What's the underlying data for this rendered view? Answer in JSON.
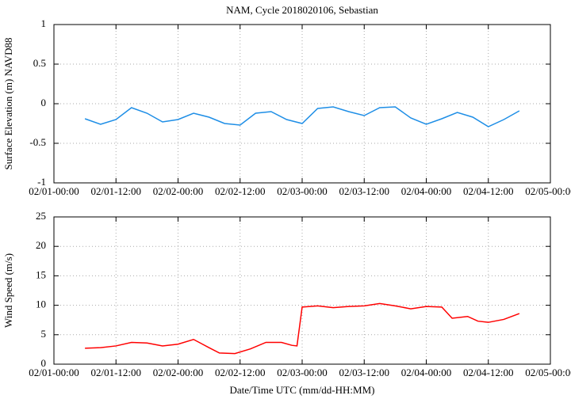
{
  "chart_data": [
    {
      "type": "line",
      "title": "NAM, Cycle 2018020106,  Sebastian",
      "y_label": "Surface Elevation (m) NAVD88",
      "x": [
        6,
        9,
        12,
        15,
        18,
        21,
        24,
        27,
        30,
        33,
        36,
        39,
        42,
        45,
        48,
        51,
        54,
        57,
        60,
        63,
        66,
        69,
        72,
        75,
        78,
        81,
        84,
        87,
        90
      ],
      "series": [
        {
          "color": "#1e8ee6",
          "values": [
            -0.19,
            -0.26,
            -0.2,
            -0.05,
            -0.12,
            -0.23,
            -0.2,
            -0.12,
            -0.17,
            -0.25,
            -0.27,
            -0.12,
            -0.1,
            -0.2,
            -0.25,
            -0.06,
            -0.04,
            -0.1,
            -0.15,
            -0.05,
            -0.04,
            -0.18,
            -0.26,
            -0.19,
            -0.11,
            -0.17,
            -0.29,
            -0.2,
            -0.09
          ]
        }
      ],
      "xlim": [
        0,
        96
      ],
      "ylim": [
        -1,
        1
      ],
      "xticks": [
        {
          "value": 0,
          "label": "02/01-00:00"
        },
        {
          "value": 12,
          "label": "02/01-12:00"
        },
        {
          "value": 24,
          "label": "02/02-00:00"
        },
        {
          "value": 36,
          "label": "02/02-12:00"
        },
        {
          "value": 48,
          "label": "02/03-00:00"
        },
        {
          "value": 60,
          "label": "02/03-12:00"
        },
        {
          "value": 72,
          "label": "02/04-00:00"
        },
        {
          "value": 84,
          "label": "02/04-12:00"
        },
        {
          "value": 96,
          "label": "02/05-00:00"
        }
      ],
      "yticks": [
        -1,
        -0.5,
        0,
        0.5,
        1
      ],
      "grid": true
    },
    {
      "type": "line",
      "x_label": "Date/Time UTC (mm/dd-HH:MM)",
      "y_label": "Wind Speed (m/s)",
      "x": [
        6,
        9,
        12,
        15,
        18,
        21,
        24,
        27,
        30,
        32,
        35,
        38,
        41,
        44,
        46,
        47,
        48,
        51,
        54,
        57,
        60,
        63,
        66,
        69,
        72,
        75,
        77,
        80,
        82,
        84,
        87,
        90
      ],
      "series": [
        {
          "color": "#ff0000",
          "values": [
            2.7,
            2.8,
            3.1,
            3.7,
            3.6,
            3.1,
            3.4,
            4.2,
            2.8,
            1.9,
            1.8,
            2.6,
            3.7,
            3.7,
            3.2,
            3.1,
            9.7,
            9.9,
            9.6,
            9.8,
            9.9,
            10.3,
            9.9,
            9.4,
            9.8,
            9.7,
            7.8,
            8.1,
            7.3,
            7.1,
            7.6,
            8.6
          ]
        }
      ],
      "xlim": [
        0,
        96
      ],
      "ylim": [
        0,
        25
      ],
      "xticks": [
        {
          "value": 0,
          "label": "02/01-00:00"
        },
        {
          "value": 12,
          "label": "02/01-12:00"
        },
        {
          "value": 24,
          "label": "02/02-00:00"
        },
        {
          "value": 36,
          "label": "02/02-12:00"
        },
        {
          "value": 48,
          "label": "02/03-00:00"
        },
        {
          "value": 60,
          "label": "02/03-12:00"
        },
        {
          "value": 72,
          "label": "02/04-00:00"
        },
        {
          "value": 84,
          "label": "02/04-12:00"
        },
        {
          "value": 96,
          "label": "02/05-00:00"
        }
      ],
      "yticks": [
        0,
        5,
        10,
        15,
        20,
        25
      ],
      "grid": true
    }
  ]
}
